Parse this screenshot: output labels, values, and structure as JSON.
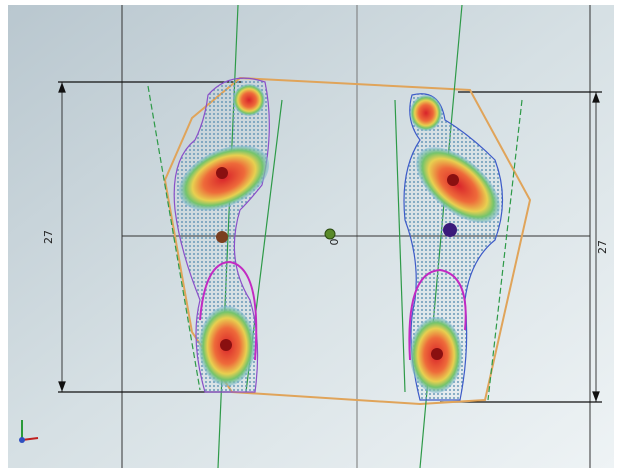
{
  "dimensions": {
    "left": "27",
    "right": "27"
  },
  "center_label": "0"
}
